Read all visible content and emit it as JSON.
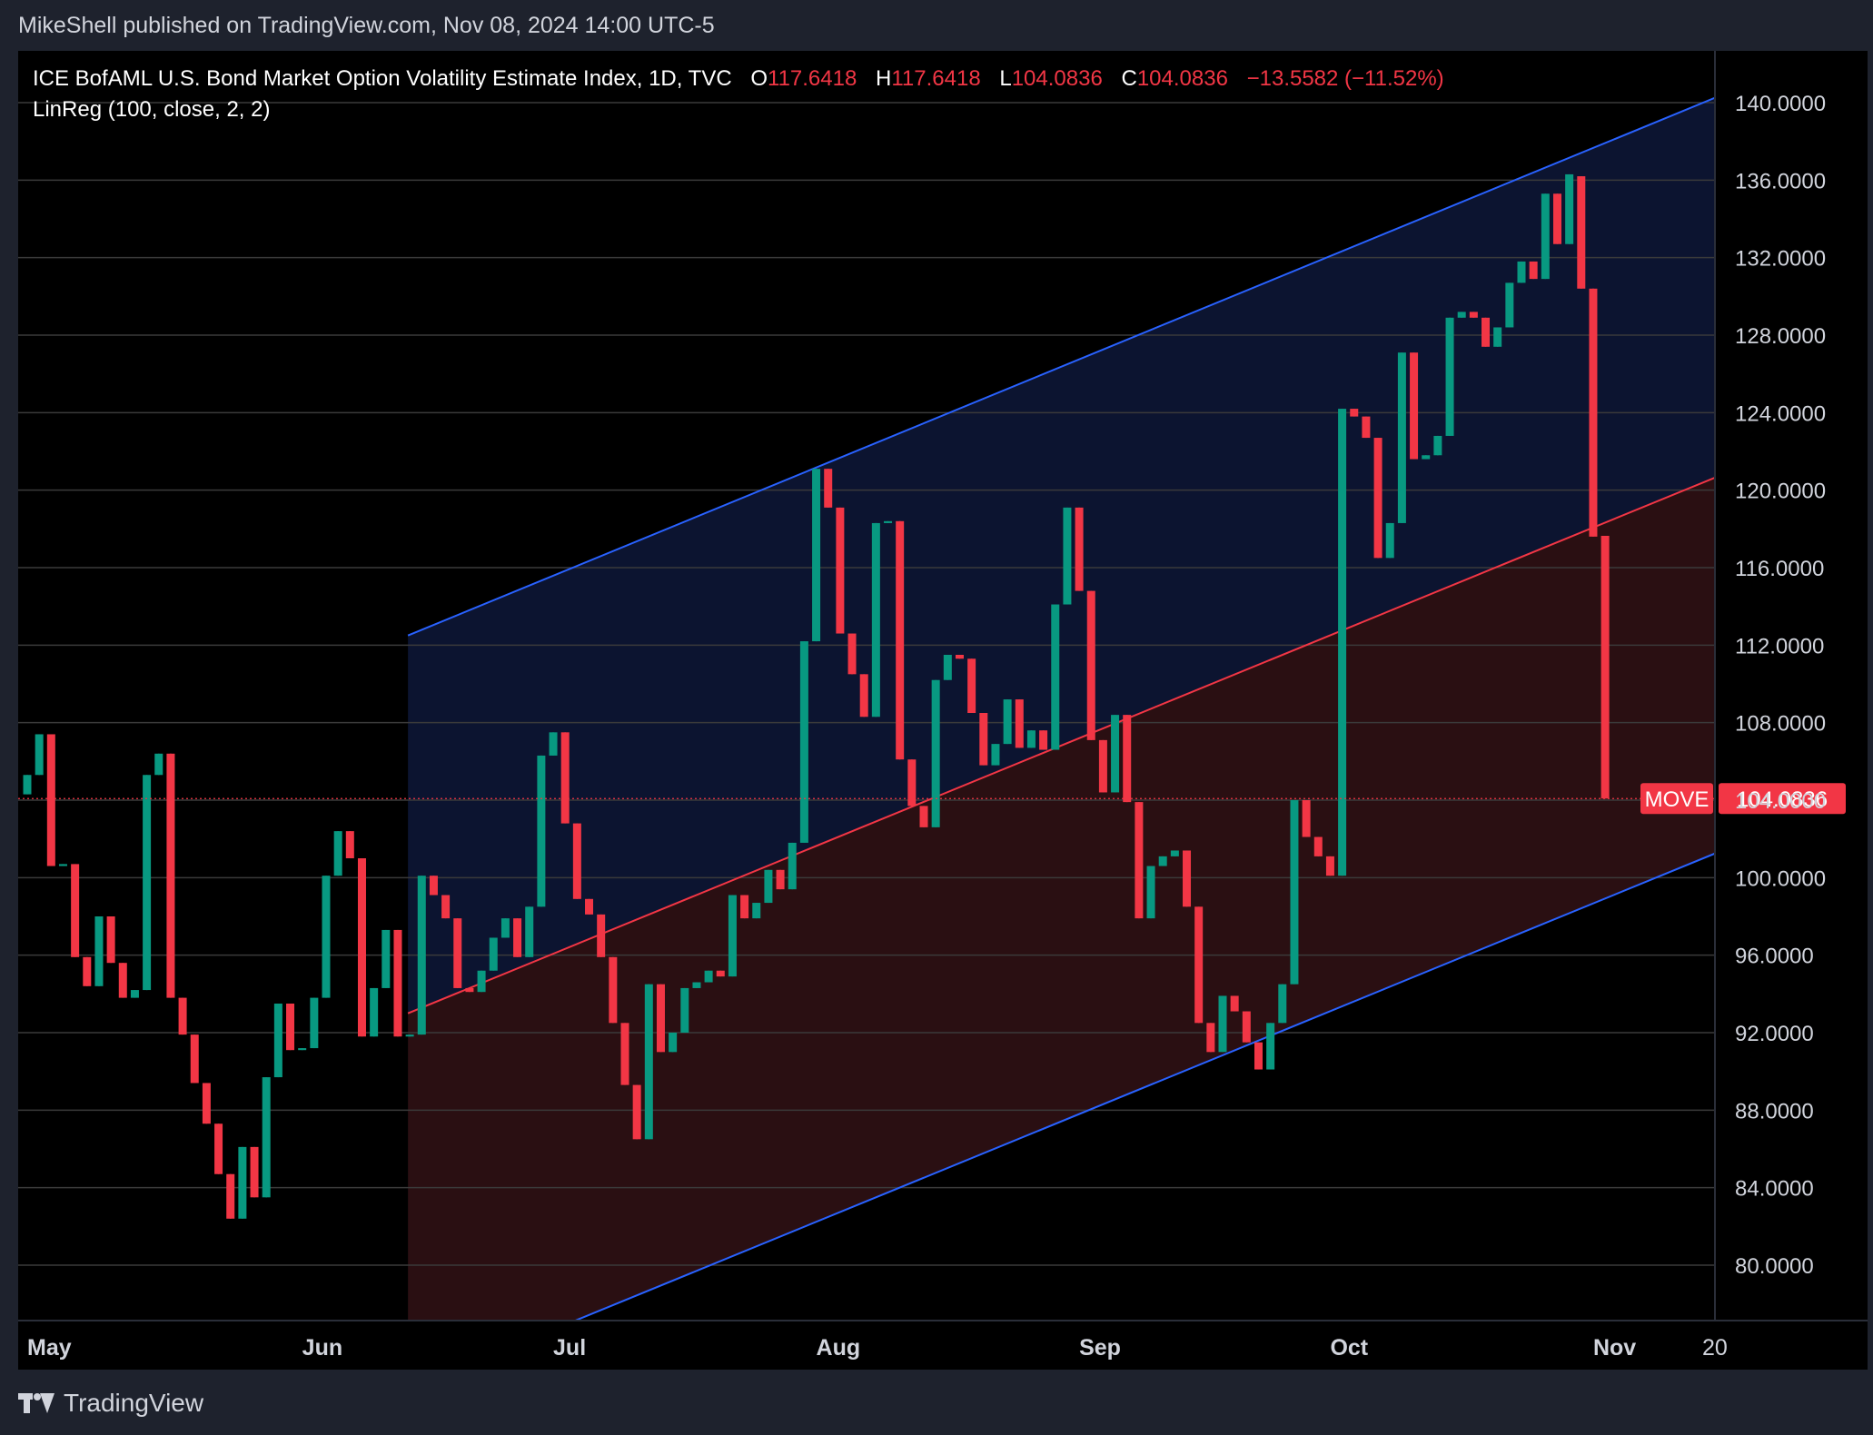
{
  "header": {
    "publisher_text": "MikeShell published on TradingView.com, Nov 08, 2024 14:00 UTC-5"
  },
  "legend": {
    "symbol_title": "ICE BofAML U.S. Bond Market Option Volatility Estimate Index, 1D, TVC",
    "open_label": "O",
    "open_value": "117.6418",
    "high_label": "H",
    "high_value": "117.6418",
    "low_label": "L",
    "low_value": "104.0836",
    "close_label": "C",
    "close_value": "104.0836",
    "change_text": "−13.5582 (−11.52%)",
    "indicator": "LinReg (100, close, 2, 2)"
  },
  "price_tag": {
    "symbol": "MOVE",
    "value": "104.0836"
  },
  "footer": {
    "brand": "TradingView"
  },
  "colors": {
    "background": "#000000",
    "up": "#089981",
    "down": "#f23645",
    "channel_outer": "#2962ff",
    "channel_mid": "#f23645",
    "upper_fill": "#0c1430",
    "lower_fill": "#2a0f12",
    "grid": "#3a3a3a",
    "text": "#d1d4dc"
  },
  "chart_data": {
    "type": "candlestick",
    "title": "ICE BofAML U.S. Bond Market Option Volatility Estimate Index, 1D, TVC",
    "ylim": [
      77,
      142
    ],
    "y_ticks": [
      "140.0000",
      "136.0000",
      "132.0000",
      "128.0000",
      "124.0000",
      "120.0000",
      "116.0000",
      "112.0000",
      "108.0000",
      "104.0000",
      "100.0000",
      "96.0000",
      "92.0000",
      "88.0000",
      "84.0000",
      "80.0000"
    ],
    "y_tick_values": [
      140,
      136,
      132,
      128,
      124,
      120,
      116,
      112,
      108,
      104,
      100,
      96,
      92,
      88,
      84,
      80
    ],
    "x_labels": [
      {
        "label": "May",
        "index": 0
      },
      {
        "label": "Jun",
        "index": 23
      },
      {
        "label": "Jul",
        "index": 44
      },
      {
        "label": "Aug",
        "index": 66
      },
      {
        "label": "Sep",
        "index": 88
      },
      {
        "label": "Oct",
        "index": 109
      },
      {
        "label": "Nov",
        "index": 131
      },
      {
        "label": "20",
        "index": 144
      }
    ],
    "x_range": [
      -1,
      142
    ],
    "candles": [
      {
        "o": 104.3,
        "h": 105.3,
        "l": 104.3,
        "c": 105.3
      },
      {
        "o": 105.3,
        "h": 107.4,
        "l": 105.3,
        "c": 107.4
      },
      {
        "o": 107.4,
        "h": 107.4,
        "l": 100.6,
        "c": 100.6
      },
      {
        "o": 100.6,
        "h": 100.7,
        "l": 100.6,
        "c": 100.7
      },
      {
        "o": 100.7,
        "h": 100.7,
        "l": 95.9,
        "c": 95.9
      },
      {
        "o": 95.9,
        "h": 95.9,
        "l": 94.4,
        "c": 94.4
      },
      {
        "o": 94.4,
        "h": 98.0,
        "l": 94.4,
        "c": 98.0
      },
      {
        "o": 98.0,
        "h": 98.0,
        "l": 95.6,
        "c": 95.6
      },
      {
        "o": 95.6,
        "h": 95.6,
        "l": 93.8,
        "c": 93.8
      },
      {
        "o": 93.8,
        "h": 94.2,
        "l": 93.8,
        "c": 94.2
      },
      {
        "o": 94.2,
        "h": 105.3,
        "l": 94.2,
        "c": 105.3
      },
      {
        "o": 105.3,
        "h": 106.4,
        "l": 105.3,
        "c": 106.4
      },
      {
        "o": 106.4,
        "h": 106.4,
        "l": 93.8,
        "c": 93.8
      },
      {
        "o": 93.8,
        "h": 93.8,
        "l": 91.9,
        "c": 91.9
      },
      {
        "o": 91.9,
        "h": 91.9,
        "l": 89.4,
        "c": 89.4
      },
      {
        "o": 89.4,
        "h": 89.4,
        "l": 87.3,
        "c": 87.3
      },
      {
        "o": 87.3,
        "h": 87.3,
        "l": 84.7,
        "c": 84.7
      },
      {
        "o": 84.7,
        "h": 84.7,
        "l": 82.4,
        "c": 82.4
      },
      {
        "o": 82.4,
        "h": 86.1,
        "l": 82.4,
        "c": 86.1
      },
      {
        "o": 86.1,
        "h": 86.1,
        "l": 83.5,
        "c": 83.5
      },
      {
        "o": 83.5,
        "h": 89.7,
        "l": 83.5,
        "c": 89.7
      },
      {
        "o": 89.7,
        "h": 93.5,
        "l": 89.7,
        "c": 93.5
      },
      {
        "o": 93.5,
        "h": 93.5,
        "l": 91.1,
        "c": 91.1
      },
      {
        "o": 91.1,
        "h": 91.2,
        "l": 91.1,
        "c": 91.2
      },
      {
        "o": 91.2,
        "h": 93.8,
        "l": 91.2,
        "c": 93.8
      },
      {
        "o": 93.8,
        "h": 100.1,
        "l": 93.8,
        "c": 100.1
      },
      {
        "o": 100.1,
        "h": 102.4,
        "l": 100.1,
        "c": 102.4
      },
      {
        "o": 102.4,
        "h": 102.4,
        "l": 101.0,
        "c": 101.0
      },
      {
        "o": 101.0,
        "h": 101.0,
        "l": 91.8,
        "c": 91.8
      },
      {
        "o": 91.8,
        "h": 94.3,
        "l": 91.8,
        "c": 94.3
      },
      {
        "o": 94.3,
        "h": 97.3,
        "l": 94.3,
        "c": 97.3
      },
      {
        "o": 97.3,
        "h": 97.3,
        "l": 91.8,
        "c": 91.8
      },
      {
        "o": 91.8,
        "h": 91.9,
        "l": 91.8,
        "c": 91.9
      },
      {
        "o": 91.9,
        "h": 100.1,
        "l": 91.9,
        "c": 100.1
      },
      {
        "o": 100.1,
        "h": 100.1,
        "l": 99.1,
        "c": 99.1
      },
      {
        "o": 99.1,
        "h": 99.1,
        "l": 97.9,
        "c": 97.9
      },
      {
        "o": 97.9,
        "h": 97.9,
        "l": 94.3,
        "c": 94.3
      },
      {
        "o": 94.3,
        "h": 94.3,
        "l": 94.1,
        "c": 94.1
      },
      {
        "o": 94.1,
        "h": 95.2,
        "l": 94.1,
        "c": 95.2
      },
      {
        "o": 95.2,
        "h": 96.9,
        "l": 95.2,
        "c": 96.9
      },
      {
        "o": 96.9,
        "h": 97.9,
        "l": 96.9,
        "c": 97.9
      },
      {
        "o": 97.9,
        "h": 97.9,
        "l": 95.9,
        "c": 95.9
      },
      {
        "o": 95.9,
        "h": 98.5,
        "l": 95.9,
        "c": 98.5
      },
      {
        "o": 98.5,
        "h": 106.3,
        "l": 98.5,
        "c": 106.3
      },
      {
        "o": 106.3,
        "h": 107.5,
        "l": 106.3,
        "c": 107.5
      },
      {
        "o": 107.5,
        "h": 107.5,
        "l": 102.8,
        "c": 102.8
      },
      {
        "o": 102.8,
        "h": 102.8,
        "l": 98.9,
        "c": 98.9
      },
      {
        "o": 98.9,
        "h": 98.9,
        "l": 98.1,
        "c": 98.1
      },
      {
        "o": 98.1,
        "h": 98.1,
        "l": 95.9,
        "c": 95.9
      },
      {
        "o": 95.9,
        "h": 95.9,
        "l": 92.5,
        "c": 92.5
      },
      {
        "o": 92.5,
        "h": 92.5,
        "l": 89.3,
        "c": 89.3
      },
      {
        "o": 89.3,
        "h": 89.3,
        "l": 86.5,
        "c": 86.5
      },
      {
        "o": 86.5,
        "h": 94.5,
        "l": 86.5,
        "c": 94.5
      },
      {
        "o": 94.5,
        "h": 94.5,
        "l": 91.0,
        "c": 91.0
      },
      {
        "o": 91.0,
        "h": 92.0,
        "l": 91.0,
        "c": 92.0
      },
      {
        "o": 92.0,
        "h": 94.3,
        "l": 92.0,
        "c": 94.3
      },
      {
        "o": 94.3,
        "h": 94.6,
        "l": 94.3,
        "c": 94.6
      },
      {
        "o": 94.6,
        "h": 95.2,
        "l": 94.6,
        "c": 95.2
      },
      {
        "o": 95.2,
        "h": 95.2,
        "l": 94.9,
        "c": 94.9
      },
      {
        "o": 94.9,
        "h": 99.1,
        "l": 94.9,
        "c": 99.1
      },
      {
        "o": 99.1,
        "h": 99.1,
        "l": 97.9,
        "c": 97.9
      },
      {
        "o": 97.9,
        "h": 98.7,
        "l": 97.9,
        "c": 98.7
      },
      {
        "o": 98.7,
        "h": 100.4,
        "l": 98.7,
        "c": 100.4
      },
      {
        "o": 100.4,
        "h": 100.4,
        "l": 99.4,
        "c": 99.4
      },
      {
        "o": 99.4,
        "h": 101.8,
        "l": 99.4,
        "c": 101.8
      },
      {
        "o": 101.8,
        "h": 112.2,
        "l": 101.8,
        "c": 112.2
      },
      {
        "o": 112.2,
        "h": 121.1,
        "l": 112.2,
        "c": 121.1
      },
      {
        "o": 121.1,
        "h": 121.1,
        "l": 119.1,
        "c": 119.1
      },
      {
        "o": 119.1,
        "h": 119.1,
        "l": 112.6,
        "c": 112.6
      },
      {
        "o": 112.6,
        "h": 112.6,
        "l": 110.5,
        "c": 110.5
      },
      {
        "o": 110.5,
        "h": 110.5,
        "l": 108.3,
        "c": 108.3
      },
      {
        "o": 108.3,
        "h": 118.3,
        "l": 108.3,
        "c": 118.3
      },
      {
        "o": 118.3,
        "h": 118.4,
        "l": 118.3,
        "c": 118.4
      },
      {
        "o": 118.4,
        "h": 118.4,
        "l": 106.1,
        "c": 106.1
      },
      {
        "o": 106.1,
        "h": 106.1,
        "l": 103.7,
        "c": 103.7
      },
      {
        "o": 103.7,
        "h": 103.7,
        "l": 102.6,
        "c": 102.6
      },
      {
        "o": 102.6,
        "h": 110.2,
        "l": 102.6,
        "c": 110.2
      },
      {
        "o": 110.2,
        "h": 111.5,
        "l": 110.2,
        "c": 111.5
      },
      {
        "o": 111.5,
        "h": 111.4,
        "l": 111.3,
        "c": 111.3
      },
      {
        "o": 111.3,
        "h": 111.3,
        "l": 108.5,
        "c": 108.5
      },
      {
        "o": 108.5,
        "h": 108.5,
        "l": 105.8,
        "c": 105.8
      },
      {
        "o": 105.8,
        "h": 106.9,
        "l": 105.8,
        "c": 106.9
      },
      {
        "o": 106.9,
        "h": 109.2,
        "l": 106.9,
        "c": 109.2
      },
      {
        "o": 109.2,
        "h": 109.2,
        "l": 106.7,
        "c": 106.7
      },
      {
        "o": 106.7,
        "h": 107.6,
        "l": 106.7,
        "c": 107.6
      },
      {
        "o": 107.6,
        "h": 107.6,
        "l": 106.6,
        "c": 106.6
      },
      {
        "o": 106.6,
        "h": 114.1,
        "l": 106.6,
        "c": 114.1
      },
      {
        "o": 114.1,
        "h": 119.1,
        "l": 114.1,
        "c": 119.1
      },
      {
        "o": 119.1,
        "h": 119.1,
        "l": 114.8,
        "c": 114.8
      },
      {
        "o": 114.8,
        "h": 114.8,
        "l": 107.1,
        "c": 107.1
      },
      {
        "o": 107.1,
        "h": 107.1,
        "l": 104.4,
        "c": 104.4
      },
      {
        "o": 104.4,
        "h": 108.4,
        "l": 104.4,
        "c": 108.4
      },
      {
        "o": 108.4,
        "h": 108.4,
        "l": 103.9,
        "c": 103.9
      },
      {
        "o": 103.9,
        "h": 103.9,
        "l": 97.9,
        "c": 97.9
      },
      {
        "o": 97.9,
        "h": 100.6,
        "l": 97.9,
        "c": 100.6
      },
      {
        "o": 100.6,
        "h": 101.1,
        "l": 100.6,
        "c": 101.1
      },
      {
        "o": 101.1,
        "h": 101.4,
        "l": 101.1,
        "c": 101.4
      },
      {
        "o": 101.4,
        "h": 101.4,
        "l": 98.5,
        "c": 98.5
      },
      {
        "o": 98.5,
        "h": 98.5,
        "l": 92.5,
        "c": 92.5
      },
      {
        "o": 92.5,
        "h": 92.5,
        "l": 91.0,
        "c": 91.0
      },
      {
        "o": 91.0,
        "h": 93.9,
        "l": 91.0,
        "c": 93.9
      },
      {
        "o": 93.9,
        "h": 93.9,
        "l": 93.1,
        "c": 93.1
      },
      {
        "o": 93.1,
        "h": 93.1,
        "l": 91.5,
        "c": 91.5
      },
      {
        "o": 91.5,
        "h": 91.5,
        "l": 90.1,
        "c": 90.1
      },
      {
        "o": 90.1,
        "h": 92.5,
        "l": 90.1,
        "c": 92.5
      },
      {
        "o": 92.5,
        "h": 94.5,
        "l": 92.5,
        "c": 94.5
      },
      {
        "o": 94.5,
        "h": 104.0,
        "l": 94.5,
        "c": 104.0
      },
      {
        "o": 104.0,
        "h": 104.0,
        "l": 102.1,
        "c": 102.1
      },
      {
        "o": 102.1,
        "h": 102.1,
        "l": 101.1,
        "c": 101.1
      },
      {
        "o": 101.1,
        "h": 101.1,
        "l": 100.1,
        "c": 100.1
      },
      {
        "o": 100.1,
        "h": 124.2,
        "l": 100.1,
        "c": 124.2
      },
      {
        "o": 124.2,
        "h": 124.2,
        "l": 123.8,
        "c": 123.8
      },
      {
        "o": 123.8,
        "h": 123.8,
        "l": 122.7,
        "c": 122.7
      },
      {
        "o": 122.7,
        "h": 122.7,
        "l": 116.5,
        "c": 116.5
      },
      {
        "o": 116.5,
        "h": 118.3,
        "l": 116.5,
        "c": 118.3
      },
      {
        "o": 118.3,
        "h": 127.1,
        "l": 118.3,
        "c": 127.1
      },
      {
        "o": 127.1,
        "h": 127.1,
        "l": 121.6,
        "c": 121.6
      },
      {
        "o": 121.6,
        "h": 121.8,
        "l": 121.6,
        "c": 121.8
      },
      {
        "o": 121.8,
        "h": 122.8,
        "l": 121.8,
        "c": 122.8
      },
      {
        "o": 122.8,
        "h": 128.9,
        "l": 122.8,
        "c": 128.9
      },
      {
        "o": 128.9,
        "h": 129.2,
        "l": 128.9,
        "c": 129.2
      },
      {
        "o": 129.2,
        "h": 129.2,
        "l": 128.9,
        "c": 128.9
      },
      {
        "o": 128.9,
        "h": 128.9,
        "l": 127.4,
        "c": 127.4
      },
      {
        "o": 127.4,
        "h": 128.4,
        "l": 127.4,
        "c": 128.4
      },
      {
        "o": 128.4,
        "h": 130.7,
        "l": 128.4,
        "c": 130.7
      },
      {
        "o": 130.7,
        "h": 131.8,
        "l": 130.7,
        "c": 131.8
      },
      {
        "o": 131.8,
        "h": 131.8,
        "l": 130.9,
        "c": 130.9
      },
      {
        "o": 130.9,
        "h": 135.3,
        "l": 130.9,
        "c": 135.3
      },
      {
        "o": 135.3,
        "h": 135.3,
        "l": 132.7,
        "c": 132.7
      },
      {
        "o": 132.7,
        "h": 136.3,
        "l": 132.7,
        "c": 136.3
      },
      {
        "o": 136.2,
        "h": 136.2,
        "l": 130.4,
        "c": 130.4
      },
      {
        "o": 130.4,
        "h": 130.4,
        "l": 117.6,
        "c": 117.6
      },
      {
        "o": 117.6418,
        "h": 117.6418,
        "l": 104.0836,
        "c": 104.0836
      }
    ],
    "linreg": {
      "start_index": 32,
      "end_index": 141,
      "mid_start": 93.0,
      "mid_end": 120.6,
      "upper_start": 112.5,
      "upper_end": 140.2,
      "lower_start": 73.6,
      "lower_end": 101.2,
      "extend_to_index": 151
    },
    "last_price": 104.0836
  }
}
